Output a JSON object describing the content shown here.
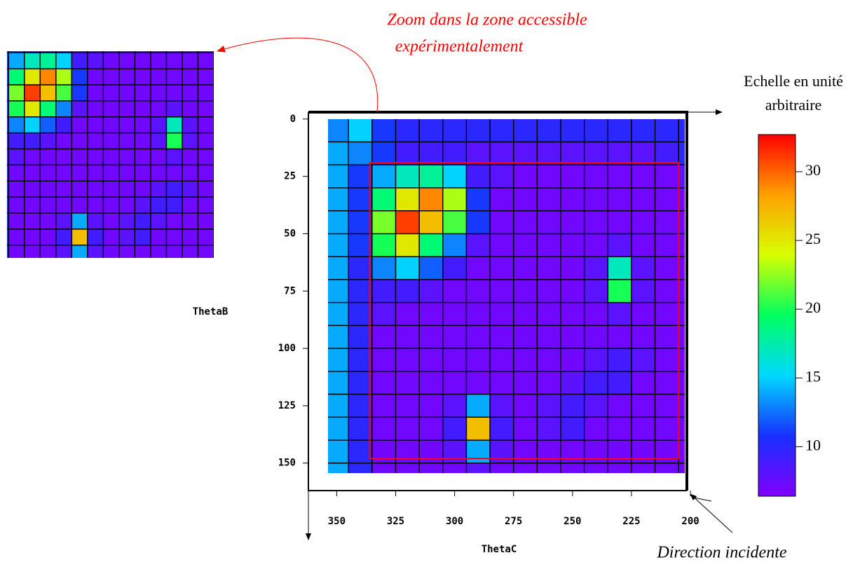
{
  "chart_data": {
    "type": "heatmap",
    "x_label": "ThetaC",
    "y_label": "ThetaB",
    "x": [
      350,
      340,
      330,
      320,
      310,
      300,
      290,
      280,
      270,
      260,
      250,
      240,
      230,
      220,
      210,
      200
    ],
    "y": [
      5,
      15,
      25,
      35,
      45,
      55,
      65,
      75,
      85,
      95,
      105,
      115,
      125,
      135,
      145,
      155
    ],
    "z": [
      [
        13,
        15,
        11,
        10,
        10,
        10,
        10,
        10,
        10,
        10,
        10,
        10,
        10,
        10,
        10,
        10
      ],
      [
        14,
        13,
        11,
        9,
        9,
        9,
        8,
        8,
        8,
        8,
        8,
        8,
        8,
        8,
        9,
        10
      ],
      [
        14,
        11,
        14,
        17,
        18,
        15,
        9,
        8,
        7,
        7,
        7,
        7,
        7,
        7,
        7,
        8
      ],
      [
        14,
        11,
        19,
        25,
        29,
        23,
        11,
        7,
        7,
        7,
        7,
        7,
        7,
        7,
        7,
        7
      ],
      [
        14,
        11,
        22,
        31,
        27,
        21,
        11,
        7,
        7,
        7,
        7,
        7,
        7,
        7,
        7,
        7
      ],
      [
        14,
        11,
        20,
        25,
        19,
        13,
        8,
        7,
        7,
        7,
        7,
        7,
        8,
        7,
        7,
        7
      ],
      [
        14,
        10,
        13,
        15,
        12,
        9,
        7,
        7,
        7,
        7,
        7,
        8,
        17,
        8,
        7,
        7
      ],
      [
        14,
        10,
        9,
        9,
        8,
        7,
        7,
        7,
        7,
        7,
        7,
        8,
        20,
        8,
        7,
        7
      ],
      [
        14,
        10,
        8,
        7,
        7,
        7,
        7,
        7,
        7,
        7,
        7,
        7,
        8,
        7,
        7,
        7
      ],
      [
        14,
        10,
        7,
        7,
        7,
        7,
        7,
        7,
        7,
        7,
        7,
        7,
        7,
        7,
        7,
        7
      ],
      [
        14,
        10,
        7,
        7,
        7,
        7,
        7,
        7,
        7,
        7,
        7,
        8,
        9,
        8,
        7,
        7
      ],
      [
        14,
        10,
        7,
        7,
        7,
        7,
        7,
        7,
        7,
        7,
        8,
        9,
        9,
        7,
        7,
        7
      ],
      [
        14,
        10,
        7,
        7,
        7,
        8,
        14,
        8,
        7,
        8,
        9,
        8,
        7,
        7,
        7,
        7
      ],
      [
        14,
        10,
        7,
        7,
        7,
        9,
        27,
        9,
        7,
        8,
        9,
        7,
        7,
        7,
        7,
        7
      ],
      [
        14,
        10,
        7,
        7,
        7,
        8,
        14,
        8,
        7,
        7,
        7,
        7,
        7,
        7,
        7,
        7
      ],
      [
        14,
        10,
        7,
        7,
        7,
        7,
        8,
        7,
        7,
        7,
        7,
        7,
        7,
        7,
        7,
        7
      ]
    ],
    "xlim": [
      362,
      201.5
    ],
    "ylim": [
      -3,
      162
    ],
    "xticks": [
      350,
      325,
      300,
      275,
      250,
      225,
      200
    ],
    "yticks": [
      0,
      25,
      50,
      75,
      100,
      125,
      150
    ],
    "zlim": [
      6.4,
      32.7
    ],
    "zticks": [
      10,
      15,
      20,
      25,
      30
    ],
    "colormap": [
      "#8000ff",
      "#1830ff",
      "#00d8ff",
      "#00ff60",
      "#d8ff00",
      "#ffa000",
      "#ff0000"
    ],
    "zoom_region": {
      "x": [
        336,
        205
      ],
      "y": [
        19,
        148
      ],
      "color": "#ff0000"
    },
    "zoom_annotation": [
      "Zoom dans la zone accessible",
      "expérimentalement"
    ],
    "colorbar_title": [
      "Echelle en unité",
      "arbitraire"
    ],
    "direction_annotation": "Direction incidente"
  }
}
